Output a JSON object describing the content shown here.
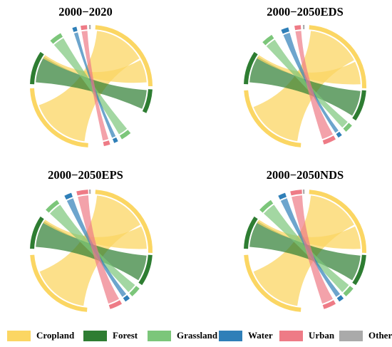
{
  "categories": [
    {
      "name": "Cropland",
      "color": "#FBD663"
    },
    {
      "name": "Forest",
      "color": "#2E7D32"
    },
    {
      "name": "Grassland",
      "color": "#7CC67A"
    },
    {
      "name": "Water",
      "color": "#2F7FB8"
    },
    {
      "name": "Urban",
      "color": "#EE7B86"
    },
    {
      "name": "Other",
      "color": "#AAAAAA"
    }
  ],
  "panels": [
    {
      "title": "2000−2020"
    },
    {
      "title": "2000−2050EDS"
    },
    {
      "title": "2000−2050EPS"
    },
    {
      "title": "2000−2050NDS"
    }
  ]
}
